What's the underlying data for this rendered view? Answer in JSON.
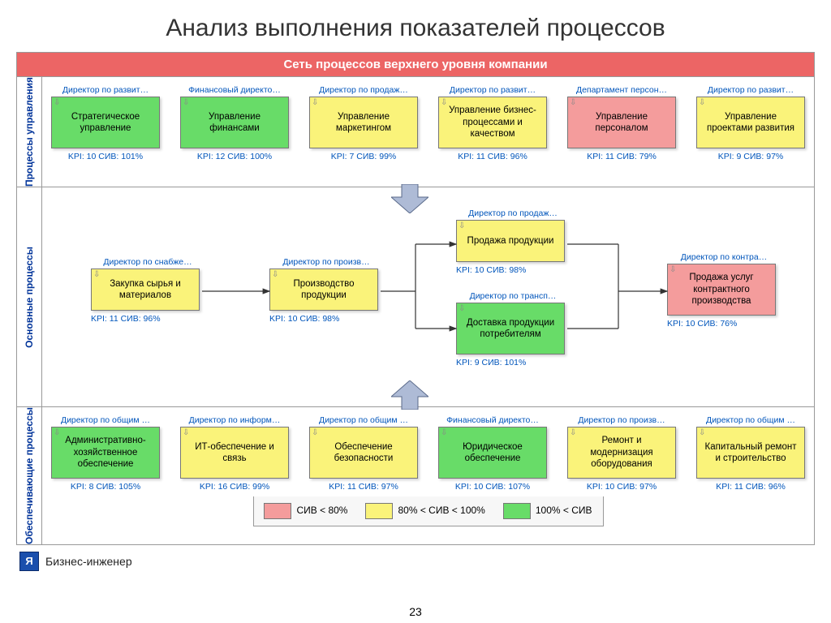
{
  "title": "Анализ выполнения показателей процессов",
  "banner": "Сеть процессов верхнего уровня компании",
  "pageNumber": "23",
  "footer": "Бизнес-инженер",
  "colors": {
    "green": "#68dc68",
    "yellow": "#faf37a",
    "red": "#f49c9c",
    "banner": "#ec6565",
    "link": "#0055bb",
    "border": "#777"
  },
  "legend": [
    {
      "color": "#f49c9c",
      "label": "СИВ < 80%"
    },
    {
      "color": "#faf37a",
      "label": "80% < СИВ < 100%"
    },
    {
      "color": "#68dc68",
      "label": "100% < СИВ"
    }
  ],
  "rows": [
    {
      "label": "Процессы управления",
      "cells": [
        {
          "dir": "Директор по развит…",
          "name": "Стратегическое управление",
          "kpi": "KPI: 10   СИВ: 101%",
          "color": "g"
        },
        {
          "dir": "Финансовый директо…",
          "name": "Управление финансами",
          "kpi": "KPI: 12   СИВ: 100%",
          "color": "g"
        },
        {
          "dir": "Директор по продаж…",
          "name": "Управление маркетингом",
          "kpi": "KPI: 7   СИВ: 99%",
          "color": "y"
        },
        {
          "dir": "Директор по развит…",
          "name": "Управление бизнес-процессами и качеством",
          "kpi": "KPI: 11   СИВ: 96%",
          "color": "y"
        },
        {
          "dir": "Департамент персон…",
          "name": "Управление персоналом",
          "kpi": "KPI: 11   СИВ: 79%",
          "color": "r"
        },
        {
          "dir": "Директор по развит…",
          "name": "Управление проектами развития",
          "kpi": "KPI: 9   СИВ: 97%",
          "color": "y"
        }
      ]
    },
    {
      "label": "Основные процессы",
      "cells_main": {
        "n1": {
          "dir": "Директор по снабже…",
          "name": "Закупка сырья и материалов",
          "kpi": "KPI: 11   СИВ: 96%",
          "color": "y"
        },
        "n2": {
          "dir": "Директор по произв…",
          "name": "Производство продукции",
          "kpi": "KPI: 10   СИВ: 98%",
          "color": "y"
        },
        "n3": {
          "dir": "Директор по продаж…",
          "name": "Продажа продукции",
          "kpi": "KPI: 10   СИВ: 98%",
          "color": "y"
        },
        "n4": {
          "dir": "Директор по трансп…",
          "name": "Доставка продукции потребителям",
          "kpi": "KPI: 9   СИВ: 101%",
          "color": "g"
        },
        "n5": {
          "dir": "Директор по контра…",
          "name": "Продажа услуг контрактного производства",
          "kpi": "KPI: 10   СИВ: 76%",
          "color": "r"
        }
      }
    },
    {
      "label": "Обеспечивающие процессы",
      "cells": [
        {
          "dir": "Директор по общим …",
          "name": "Административно-хозяйственное обеспечение",
          "kpi": "KPI: 8   СИВ: 105%",
          "color": "g"
        },
        {
          "dir": "Директор по информ…",
          "name": "ИТ-обеспечение и связь",
          "kpi": "KPI: 16   СИВ: 99%",
          "color": "y"
        },
        {
          "dir": "Директор по общим …",
          "name": "Обеспечение безопасности",
          "kpi": "KPI: 11   СИВ: 97%",
          "color": "y"
        },
        {
          "dir": "Финансовый директо…",
          "name": "Юридическое обеспечение",
          "kpi": "KPI: 10   СИВ: 107%",
          "color": "g"
        },
        {
          "dir": "Директор по произв…",
          "name": "Ремонт и модернизация оборудования",
          "kpi": "KPI: 10   СИВ: 97%",
          "color": "y"
        },
        {
          "dir": "Директор по общим …",
          "name": "Капитальный ремонт и строительство",
          "kpi": "KPI: 11   СИВ: 96%",
          "color": "y"
        }
      ]
    }
  ]
}
